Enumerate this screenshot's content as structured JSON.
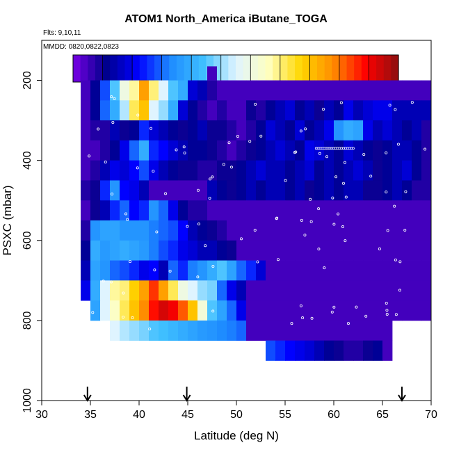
{
  "chart_data": {
    "type": "heatmap",
    "title": "ATOM1 North_America iButane_TOGA",
    "annotations": [
      "Flts: 9,10,11",
      "MMDD: 0820,0822,0823"
    ],
    "xlabel": "Latitude (deg N)",
    "ylabel": "PSXC (mbar)",
    "xlim": [
      30,
      70
    ],
    "ylim": [
      1000,
      100
    ],
    "x_ticks": [
      30,
      35,
      40,
      45,
      50,
      55,
      60,
      65,
      70
    ],
    "y_ticks": [
      200,
      400,
      600,
      800,
      1000
    ],
    "colorbar": {
      "ticks": [
        10,
        20,
        30,
        40,
        50,
        60,
        70,
        80,
        90,
        100
      ],
      "range": [
        0,
        110
      ],
      "colors": [
        "#7a00e6",
        "#00008b",
        "#0000ff",
        "#1e8cff",
        "#3fbfff",
        "#dff4ff",
        "#ffffc0",
        "#ffd700",
        "#ff8c00",
        "#ff0000",
        "#8b1010"
      ]
    },
    "flight_markers_lat": [
      34.7,
      44.9,
      67.0
    ],
    "grid": false,
    "legend": "colorbar-top",
    "series": [
      {
        "lat_range": [
          34,
          70
        ],
        "lat_step": 1,
        "pres_start": 225,
        "pres_step": 50,
        "rows": [
          [
            5,
            12,
            28,
            45,
            60,
            68,
            85,
            70,
            55,
            45,
            40,
            18,
            15,
            8,
            5,
            5,
            5,
            5,
            5,
            5,
            5,
            5,
            5,
            5,
            5,
            5,
            5,
            5,
            5,
            5,
            5,
            5,
            5,
            5,
            5,
            5
          ],
          [
            5,
            12,
            30,
            40,
            52,
            72,
            80,
            55,
            50,
            40,
            18,
            12,
            8,
            5,
            8,
            5,
            5,
            10,
            8,
            12,
            15,
            18,
            12,
            15,
            10,
            15,
            12,
            20,
            15,
            18,
            20,
            20,
            15,
            15,
            15,
            15
          ],
          [
            5,
            8,
            8,
            15,
            10,
            12,
            25,
            18,
            15,
            12,
            10,
            12,
            15,
            10,
            10,
            8,
            5,
            8,
            12,
            18,
            15,
            12,
            18,
            12,
            15,
            20,
            35,
            40,
            38,
            20,
            15,
            18,
            15,
            12,
            15,
            8
          ],
          [
            5,
            5,
            8,
            12,
            20,
            30,
            40,
            25,
            22,
            18,
            15,
            12,
            12,
            10,
            8,
            5,
            8,
            10,
            12,
            15,
            18,
            15,
            12,
            20,
            18,
            15,
            12,
            18,
            15,
            12,
            10,
            12,
            15,
            15,
            12,
            8
          ],
          [
            5,
            8,
            15,
            20,
            18,
            22,
            28,
            20,
            15,
            12,
            10,
            10,
            8,
            8,
            10,
            10,
            12,
            15,
            18,
            15,
            15,
            12,
            15,
            18,
            12,
            15,
            12,
            15,
            18,
            15,
            10,
            12,
            15,
            18,
            12,
            8
          ],
          [
            8,
            10,
            25,
            35,
            22,
            20,
            15,
            5,
            5,
            5,
            5,
            5,
            5,
            15,
            12,
            10,
            12,
            15,
            12,
            15,
            15,
            12,
            15,
            10,
            12,
            15,
            12,
            15,
            15,
            10,
            10,
            12,
            15,
            12,
            8,
            8
          ],
          [
            5,
            10,
            15,
            25,
            30,
            22,
            25,
            35,
            30,
            20,
            12,
            8,
            8,
            5,
            5,
            5,
            5,
            5,
            5,
            5,
            5,
            5,
            5,
            5,
            5,
            5,
            5,
            5,
            5,
            5,
            5,
            5,
            5,
            5,
            5,
            5
          ],
          [
            8,
            35,
            38,
            38,
            35,
            35,
            35,
            32,
            30,
            28,
            22,
            15,
            12,
            10,
            8,
            5,
            5,
            5,
            5,
            5,
            5,
            5,
            5,
            5,
            5,
            5,
            5,
            5,
            5,
            5,
            5,
            5,
            5,
            5,
            5,
            5
          ],
          [
            12,
            40,
            36,
            38,
            40,
            38,
            36,
            32,
            28,
            25,
            20,
            18,
            15,
            15,
            12,
            10,
            5,
            5,
            5,
            5,
            5,
            5,
            5,
            5,
            5,
            5,
            5,
            5,
            5,
            5,
            5,
            5,
            5,
            5,
            5,
            5
          ],
          [
            15,
            38,
            35,
            30,
            28,
            25,
            20,
            22,
            15,
            30,
            25,
            32,
            35,
            40,
            45,
            38,
            30,
            25,
            18,
            5,
            5,
            5,
            5,
            5,
            5,
            5,
            5,
            5,
            5,
            5,
            5,
            5,
            5,
            5,
            5,
            5
          ],
          [
            20,
            40,
            55,
            68,
            70,
            78,
            85,
            95,
            85,
            72,
            60,
            55,
            50,
            48,
            30,
            20,
            15,
            5,
            5,
            5,
            5,
            5,
            5,
            5,
            5,
            5,
            5,
            5,
            5,
            5,
            5,
            5,
            5,
            5,
            5,
            5
          ],
          [
            null,
            38,
            55,
            65,
            72,
            80,
            88,
            98,
            103,
            100,
            92,
            80,
            62,
            45,
            38,
            30,
            20,
            5,
            5,
            5,
            5,
            5,
            5,
            5,
            5,
            5,
            5,
            5,
            5,
            5,
            5,
            5,
            5,
            5,
            5,
            5
          ],
          [
            null,
            null,
            null,
            55,
            52,
            50,
            48,
            45,
            44,
            42,
            40,
            38,
            36,
            35,
            33,
            32,
            30,
            5,
            5,
            5,
            5,
            5,
            5,
            5,
            5,
            5,
            5,
            5,
            5,
            5,
            5,
            5,
            null,
            null,
            null,
            null
          ],
          [
            null,
            null,
            null,
            null,
            null,
            null,
            null,
            null,
            null,
            null,
            null,
            null,
            null,
            null,
            null,
            null,
            null,
            null,
            null,
            28,
            25,
            22,
            20,
            18,
            15,
            12,
            10,
            8,
            8,
            10,
            12,
            5,
            null,
            null,
            null,
            null
          ]
        ]
      }
    ]
  }
}
